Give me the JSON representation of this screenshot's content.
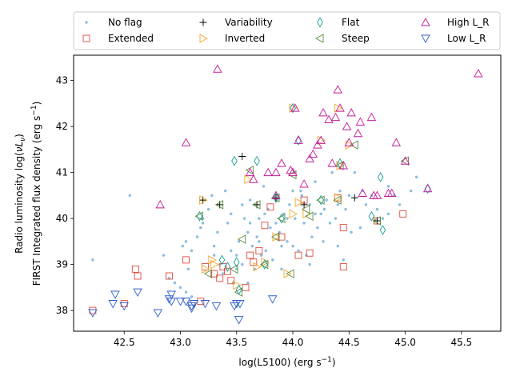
{
  "chart_data": {
    "type": "scatter",
    "title": "",
    "xlabel_parts": [
      "log(L5100) (erg s",
      "−1",
      ")"
    ],
    "ylabel_line1_parts": [
      "Radio luminosity log(",
      "νL",
      "ν",
      ")"
    ],
    "ylabel_line2_parts": [
      "FIRST Integrated flux density (erg s",
      "−1",
      ")"
    ],
    "xlim": [
      42.05,
      45.85
    ],
    "ylim": [
      37.55,
      43.55
    ],
    "xticks": [
      42.5,
      43.0,
      43.5,
      44.0,
      44.5,
      45.0,
      45.5
    ],
    "xtick_labels": [
      "42.5",
      "43.0",
      "43.5",
      "44.0",
      "44.5",
      "45.0",
      "45.5"
    ],
    "yticks": [
      38,
      39,
      40,
      41,
      42,
      43
    ],
    "ytick_labels": [
      "38",
      "39",
      "40",
      "41",
      "42",
      "43"
    ],
    "grid": false,
    "legend_location": "top, above plot area, 4 columns",
    "series": [
      {
        "name": "No flag",
        "marker": "dot",
        "color": "#87bedf",
        "points": [
          [
            42.22,
            39.1
          ],
          [
            42.55,
            40.5
          ],
          [
            42.85,
            39.2
          ],
          [
            42.9,
            38.7
          ],
          [
            42.95,
            38.6
          ],
          [
            43.0,
            38.5
          ],
          [
            43.02,
            39.4
          ],
          [
            43.05,
            39.5
          ],
          [
            43.07,
            38.9
          ],
          [
            43.1,
            39.3
          ],
          [
            43.15,
            39.6
          ],
          [
            43.18,
            39.8
          ],
          [
            43.2,
            39.9
          ],
          [
            43.25,
            40.2
          ],
          [
            43.28,
            40.5
          ],
          [
            43.3,
            39.4
          ],
          [
            43.33,
            39.7
          ],
          [
            43.35,
            39.0
          ],
          [
            43.38,
            38.8
          ],
          [
            43.4,
            40.6
          ],
          [
            43.42,
            39.9
          ],
          [
            43.45,
            40.1
          ],
          [
            43.47,
            38.6
          ],
          [
            43.5,
            39.2
          ],
          [
            43.52,
            39.5
          ],
          [
            43.55,
            39.0
          ],
          [
            43.57,
            40.0
          ],
          [
            43.6,
            39.7
          ],
          [
            43.62,
            40.4
          ],
          [
            43.64,
            39.4
          ],
          [
            43.66,
            38.9
          ],
          [
            43.68,
            39.6
          ],
          [
            43.7,
            40.0
          ],
          [
            43.72,
            39.2
          ],
          [
            43.74,
            40.7
          ],
          [
            43.76,
            39.3
          ],
          [
            43.78,
            40.2
          ],
          [
            43.8,
            39.8
          ],
          [
            43.82,
            39.1
          ],
          [
            43.85,
            40.4
          ],
          [
            43.88,
            39.7
          ],
          [
            43.9,
            38.9
          ],
          [
            43.92,
            40.1
          ],
          [
            43.95,
            39.5
          ],
          [
            43.97,
            40.3
          ],
          [
            44.0,
            39.4
          ],
          [
            44.02,
            40.0
          ],
          [
            44.05,
            39.3
          ],
          [
            44.07,
            40.6
          ],
          [
            44.1,
            39.9
          ],
          [
            44.12,
            39.2
          ],
          [
            44.15,
            40.3
          ],
          [
            44.17,
            39.6
          ],
          [
            44.2,
            40.8
          ],
          [
            44.22,
            39.8
          ],
          [
            44.25,
            40.1
          ],
          [
            44.27,
            39.5
          ],
          [
            44.3,
            40.4
          ],
          [
            44.33,
            39.9
          ],
          [
            44.35,
            41.0
          ],
          [
            44.38,
            40.0
          ],
          [
            44.4,
            39.4
          ],
          [
            44.42,
            40.6
          ],
          [
            44.45,
            39.1
          ],
          [
            44.47,
            40.2
          ],
          [
            44.5,
            40.5
          ],
          [
            44.52,
            39.7
          ],
          [
            44.55,
            41.0
          ],
          [
            44.6,
            39.8
          ],
          [
            44.65,
            40.3
          ],
          [
            44.7,
            40.5
          ],
          [
            44.75,
            40.2
          ],
          [
            44.8,
            40.0
          ],
          [
            44.85,
            40.7
          ],
          [
            44.9,
            40.5
          ],
          [
            45.05,
            40.6
          ],
          [
            45.1,
            40.9
          ],
          [
            44.95,
            40.3
          ],
          [
            43.1,
            38.3
          ],
          [
            43.6,
            38.6
          ],
          [
            43.2,
            40.0
          ],
          [
            43.85,
            39.9
          ],
          [
            44.15,
            39.0
          ],
          [
            43.45,
            39.3
          ],
          [
            43.75,
            40.1
          ],
          [
            44.28,
            40.2
          ],
          [
            43.95,
            40.0
          ],
          [
            44.08,
            40.5
          ],
          [
            43.62,
            39.9
          ],
          [
            43.3,
            39.2
          ],
          [
            43.5,
            38.9
          ],
          [
            44.4,
            40.3
          ],
          [
            44.62,
            40.6
          ],
          [
            44.85,
            40.1
          ],
          [
            43.05,
            38.4
          ],
          [
            43.9,
            39.4
          ],
          [
            44.0,
            40.6
          ],
          [
            44.2,
            40.1
          ],
          [
            43.7,
            39.5
          ],
          [
            43.55,
            40.3
          ]
        ]
      },
      {
        "name": "Extended",
        "marker": "square",
        "color": "#e04a3f",
        "points": [
          [
            42.22,
            38.0
          ],
          [
            42.5,
            38.15
          ],
          [
            42.6,
            38.9
          ],
          [
            42.62,
            38.75
          ],
          [
            42.9,
            38.75
          ],
          [
            43.05,
            39.1
          ],
          [
            43.18,
            38.2
          ],
          [
            43.22,
            38.95
          ],
          [
            43.3,
            38.8
          ],
          [
            43.35,
            38.7
          ],
          [
            43.38,
            38.95
          ],
          [
            43.42,
            38.85
          ],
          [
            43.45,
            38.65
          ],
          [
            43.58,
            38.5
          ],
          [
            43.62,
            39.2
          ],
          [
            43.65,
            39.05
          ],
          [
            43.7,
            39.3
          ],
          [
            43.75,
            39.85
          ],
          [
            43.8,
            40.25
          ],
          [
            43.9,
            39.6
          ],
          [
            44.05,
            39.2
          ],
          [
            44.1,
            40.4
          ],
          [
            44.15,
            39.25
          ],
          [
            44.45,
            39.8
          ],
          [
            44.45,
            38.95
          ],
          [
            44.75,
            39.95
          ],
          [
            44.98,
            40.1
          ],
          [
            44.4,
            40.45
          ]
        ]
      },
      {
        "name": "Variability",
        "marker": "plus",
        "color": "#000000",
        "points": [
          [
            43.55,
            41.35
          ],
          [
            43.68,
            40.3
          ],
          [
            43.35,
            40.3
          ],
          [
            43.2,
            40.4
          ],
          [
            43.85,
            40.45
          ],
          [
            44.1,
            40.3
          ],
          [
            44.55,
            40.45
          ],
          [
            44.75,
            39.95
          ]
        ]
      },
      {
        "name": "Inverted",
        "marker": "tri-right",
        "color": "#f5a623",
        "points": [
          [
            43.2,
            40.4
          ],
          [
            43.22,
            38.9
          ],
          [
            43.3,
            39.0
          ],
          [
            43.5,
            38.55
          ],
          [
            43.6,
            40.85
          ],
          [
            43.68,
            38.95
          ],
          [
            43.75,
            39.05
          ],
          [
            43.85,
            39.6
          ],
          [
            43.95,
            38.8
          ],
          [
            44.0,
            40.1
          ],
          [
            44.05,
            40.35
          ],
          [
            44.12,
            40.1
          ],
          [
            44.25,
            41.7
          ],
          [
            44.4,
            40.45
          ],
          [
            44.42,
            41.15
          ],
          [
            44.4,
            42.4
          ],
          [
            44.0,
            42.4
          ],
          [
            44.5,
            41.6
          ],
          [
            43.28,
            39.1
          ]
        ]
      },
      {
        "name": "Flat",
        "marker": "diamond",
        "color": "#17a19a",
        "points": [
          [
            43.17,
            40.05
          ],
          [
            43.37,
            39.1
          ],
          [
            43.42,
            38.95
          ],
          [
            43.48,
            41.25
          ],
          [
            43.5,
            39.05
          ],
          [
            43.52,
            38.45
          ],
          [
            43.68,
            41.25
          ],
          [
            43.75,
            39.0
          ],
          [
            43.85,
            40.45
          ],
          [
            43.9,
            40.0
          ],
          [
            44.25,
            40.4
          ],
          [
            44.42,
            41.2
          ],
          [
            44.7,
            40.05
          ],
          [
            44.78,
            40.9
          ],
          [
            44.8,
            39.75
          ],
          [
            45.2,
            40.65
          ],
          [
            44.0,
            42.4
          ],
          [
            44.05,
            41.7
          ]
        ]
      },
      {
        "name": "Steep",
        "marker": "tri-left",
        "color": "#5a8a3c",
        "points": [
          [
            43.17,
            40.05
          ],
          [
            43.25,
            38.8
          ],
          [
            43.35,
            40.3
          ],
          [
            43.48,
            38.9
          ],
          [
            43.55,
            39.55
          ],
          [
            43.62,
            41.05
          ],
          [
            43.68,
            40.3
          ],
          [
            43.75,
            39.0
          ],
          [
            43.85,
            40.45
          ],
          [
            43.9,
            40.0
          ],
          [
            43.98,
            38.8
          ],
          [
            44.12,
            40.2
          ],
          [
            44.15,
            40.05
          ],
          [
            44.25,
            40.4
          ],
          [
            44.4,
            40.4
          ],
          [
            44.42,
            41.15
          ],
          [
            44.55,
            41.6
          ],
          [
            45.0,
            41.25
          ],
          [
            44.75,
            39.95
          ],
          [
            43.52,
            38.4
          ],
          [
            43.85,
            39.6
          ],
          [
            44.0,
            40.95
          ]
        ]
      },
      {
        "name": "High L_R",
        "marker": "tri-up",
        "color": "#c51b9a",
        "points": [
          [
            42.82,
            40.3
          ],
          [
            43.05,
            41.65
          ],
          [
            43.33,
            43.25
          ],
          [
            43.62,
            41.0
          ],
          [
            43.65,
            40.85
          ],
          [
            43.78,
            41.0
          ],
          [
            43.85,
            41.0
          ],
          [
            43.9,
            41.2
          ],
          [
            43.98,
            41.05
          ],
          [
            44.0,
            41.0
          ],
          [
            44.02,
            42.4
          ],
          [
            44.05,
            41.7
          ],
          [
            44.1,
            40.75
          ],
          [
            44.15,
            41.3
          ],
          [
            44.18,
            41.4
          ],
          [
            44.22,
            41.6
          ],
          [
            44.25,
            41.7
          ],
          [
            44.27,
            42.3
          ],
          [
            44.32,
            42.15
          ],
          [
            44.35,
            41.2
          ],
          [
            44.38,
            42.2
          ],
          [
            44.4,
            42.8
          ],
          [
            44.42,
            42.4
          ],
          [
            44.45,
            41.15
          ],
          [
            44.48,
            42.0
          ],
          [
            44.5,
            41.65
          ],
          [
            44.52,
            42.3
          ],
          [
            44.58,
            41.85
          ],
          [
            44.6,
            42.1
          ],
          [
            44.62,
            40.55
          ],
          [
            44.7,
            42.2
          ],
          [
            44.72,
            40.5
          ],
          [
            44.75,
            40.5
          ],
          [
            44.85,
            40.55
          ],
          [
            44.88,
            40.55
          ],
          [
            44.92,
            41.65
          ],
          [
            45.0,
            41.25
          ],
          [
            45.2,
            40.65
          ],
          [
            45.65,
            43.15
          ],
          [
            43.85,
            40.5
          ]
        ]
      },
      {
        "name": "Low L_R",
        "marker": "tri-down",
        "color": "#2f5fcf",
        "points": [
          [
            42.22,
            37.95
          ],
          [
            42.4,
            38.15
          ],
          [
            42.42,
            38.35
          ],
          [
            42.5,
            38.1
          ],
          [
            42.62,
            38.4
          ],
          [
            42.8,
            37.95
          ],
          [
            42.9,
            38.25
          ],
          [
            42.92,
            38.2
          ],
          [
            43.0,
            38.2
          ],
          [
            43.05,
            38.2
          ],
          [
            43.1,
            38.1
          ],
          [
            43.12,
            38.15
          ],
          [
            43.22,
            38.15
          ],
          [
            43.32,
            38.1
          ],
          [
            43.48,
            38.1
          ],
          [
            43.5,
            38.15
          ],
          [
            43.53,
            38.15
          ],
          [
            43.52,
            37.8
          ],
          [
            43.82,
            38.25
          ],
          [
            43.1,
            38.05
          ],
          [
            42.92,
            38.35
          ]
        ]
      }
    ]
  },
  "legend": {
    "entries": [
      {
        "label": "No flag",
        "series": "No flag"
      },
      {
        "label": "Variability",
        "series": "Variability"
      },
      {
        "label": "Flat",
        "series": "Flat"
      },
      {
        "label": "High L_R",
        "series": "High L_R"
      },
      {
        "label": "Extended",
        "series": "Extended"
      },
      {
        "label": "Inverted",
        "series": "Inverted"
      },
      {
        "label": "Steep",
        "series": "Steep"
      },
      {
        "label": "Low L_R",
        "series": "Low L_R"
      }
    ]
  }
}
